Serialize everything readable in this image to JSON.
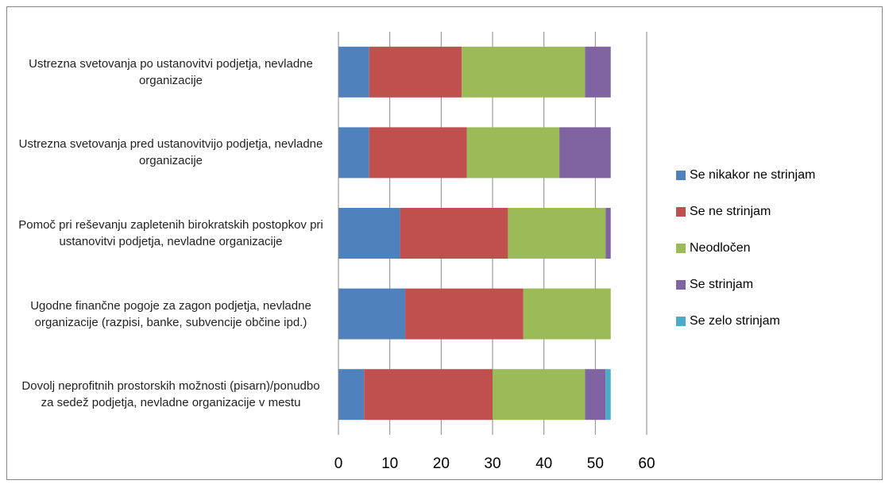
{
  "chart_data": {
    "type": "stacked_barh",
    "categories": [
      "Ustrezna svetovanja po ustanovitvi podjetja, nevladne organizacije",
      "Ustrezna svetovanja pred ustanovitvijo podjetja, nevladne organizacije",
      "Pomoč pri reševanju zapletenih birokratskih postopkov pri ustanovitvi podjetja, nevladne organizacije",
      "Ugodne finančne pogoje za zagon podjetja, nevladne organizacije (razpisi, banke, subvencije občine ipd.)",
      "Dovolj neprofitnih prostorskih možnosti (pisarn)/ponudbo za sedež podjetja, nevladne organizacije v mestu"
    ],
    "series": [
      {
        "name": "Se nikakor ne strinjam",
        "color": "#4f81bd",
        "values": [
          6,
          6,
          12,
          13,
          5
        ]
      },
      {
        "name": "Se ne strinjam",
        "color": "#c0504d",
        "values": [
          18,
          19,
          21,
          23,
          25
        ]
      },
      {
        "name": "Neodločen",
        "color": "#9bbb59",
        "values": [
          24,
          18,
          19,
          17,
          18
        ]
      },
      {
        "name": "Se strinjam",
        "color": "#8064a2",
        "values": [
          5,
          10,
          1,
          0,
          4
        ]
      },
      {
        "name": "Se  zelo strinjam",
        "color": "#4bacc6",
        "values": [
          0,
          0,
          0,
          0,
          1
        ]
      }
    ],
    "xlim": [
      0,
      60
    ],
    "xticks": [
      0,
      10,
      20,
      30,
      40,
      50,
      60
    ],
    "grid": true,
    "legend": "right"
  }
}
